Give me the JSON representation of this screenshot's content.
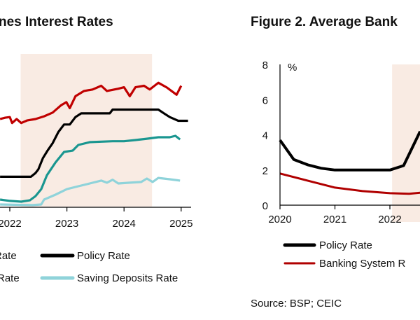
{
  "chart_data": [
    {
      "type": "line",
      "title": "nes Interest Rates",
      "x_ticks": [
        "2022",
        "2023",
        "2024",
        "2025"
      ],
      "xlim": [
        2021.83,
        2025.2
      ],
      "ylim": [
        0,
        9
      ],
      "shaded_period": [
        2022.19,
        2024.49
      ],
      "shade_color": "#f9ebe3",
      "legend": {
        "placement": "bottom",
        "cut_labels": [
          "Rate",
          "Rate"
        ]
      },
      "series": [
        {
          "name": "",
          "color": "#c00000",
          "x": [
            2021.83,
            2021.92,
            2022.0,
            2022.04,
            2022.12,
            2022.2,
            2022.3,
            2022.45,
            2022.6,
            2022.75,
            2022.9,
            2022.99,
            2023.05,
            2023.15,
            2023.3,
            2023.45,
            2023.6,
            2023.7,
            2023.9,
            2024.0,
            2024.1,
            2024.2,
            2024.35,
            2024.45,
            2024.6,
            2024.75,
            2024.92,
            2025.0
          ],
          "y": [
            5.87,
            5.96,
            6.0,
            5.6,
            5.87,
            5.6,
            5.77,
            5.87,
            6.05,
            6.3,
            6.8,
            7.0,
            6.6,
            7.4,
            7.75,
            7.85,
            8.1,
            7.75,
            7.9,
            8.0,
            7.4,
            8.0,
            8.1,
            7.85,
            8.3,
            7.98,
            7.5,
            8.1
          ]
        },
        {
          "name": "Policy Rate",
          "color": "#000000",
          "x": [
            2021.83,
            2022.37,
            2022.45,
            2022.5,
            2022.58,
            2022.66,
            2022.75,
            2022.85,
            2022.95,
            2023.05,
            2023.15,
            2023.25,
            2023.75,
            2023.8,
            2024.6,
            2024.7,
            2024.8,
            2024.95,
            2025.12
          ],
          "y": [
            2.0,
            2.0,
            2.25,
            2.5,
            3.25,
            3.75,
            4.25,
            5.0,
            5.5,
            5.5,
            6.0,
            6.25,
            6.25,
            6.5,
            6.5,
            6.25,
            6.0,
            5.75,
            5.75
          ]
        },
        {
          "name": "",
          "color": "#1a9690",
          "x": [
            2021.83,
            2022.0,
            2022.2,
            2022.35,
            2022.45,
            2022.55,
            2022.65,
            2022.8,
            2022.95,
            2023.1,
            2023.2,
            2023.4,
            2023.6,
            2023.8,
            2024.0,
            2024.2,
            2024.4,
            2024.6,
            2024.8,
            2024.9,
            2024.98
          ],
          "y": [
            0.47,
            0.38,
            0.33,
            0.42,
            0.7,
            1.17,
            2.1,
            2.96,
            3.66,
            3.75,
            4.13,
            4.32,
            4.35,
            4.38,
            4.38,
            4.46,
            4.55,
            4.65,
            4.65,
            4.74,
            4.5
          ]
        },
        {
          "name": "Saving Deposits Rate",
          "color": "#8fd3da",
          "x": [
            2021.83,
            2022.4,
            2022.55,
            2022.6,
            2022.8,
            2023.0,
            2023.2,
            2023.4,
            2023.6,
            2023.7,
            2023.8,
            2023.9,
            2024.1,
            2024.3,
            2024.4,
            2024.5,
            2024.6,
            2024.8,
            2024.98
          ],
          "y": [
            0.14,
            0.1,
            0.14,
            0.47,
            0.8,
            1.17,
            1.36,
            1.55,
            1.74,
            1.6,
            1.8,
            1.55,
            1.6,
            1.65,
            1.88,
            1.65,
            1.92,
            1.83,
            1.74
          ]
        }
      ]
    },
    {
      "type": "line",
      "title": "Figure 2. Average Bank",
      "ylabel": "%",
      "x_ticks": [
        "2020",
        "2021",
        "2022"
      ],
      "y_ticks": [
        "0",
        "2",
        "4",
        "6",
        "8"
      ],
      "xlim": [
        2020,
        2022.6
      ],
      "ylim": [
        0,
        8
      ],
      "shaded_period": [
        2022.04,
        2022.7
      ],
      "shade_color": "#f9ebe3",
      "legend": {
        "placement": "bottom"
      },
      "series": [
        {
          "name": "Policy Rate",
          "color": "#000000",
          "x": [
            2020.0,
            2020.25,
            2020.5,
            2020.75,
            2021.0,
            2022.0,
            2022.25,
            2022.55
          ],
          "y": [
            3.7,
            2.6,
            2.3,
            2.1,
            2.0,
            2.0,
            2.25,
            4.2
          ]
        },
        {
          "name": "Banking System R",
          "color": "#b00000",
          "x": [
            2020.0,
            2020.5,
            2021.0,
            2021.5,
            2022.0,
            2022.35,
            2022.6
          ],
          "y": [
            1.8,
            1.4,
            1.0,
            0.8,
            0.68,
            0.65,
            0.72
          ]
        }
      ]
    }
  ],
  "source": "Source: BSP; CEIC"
}
